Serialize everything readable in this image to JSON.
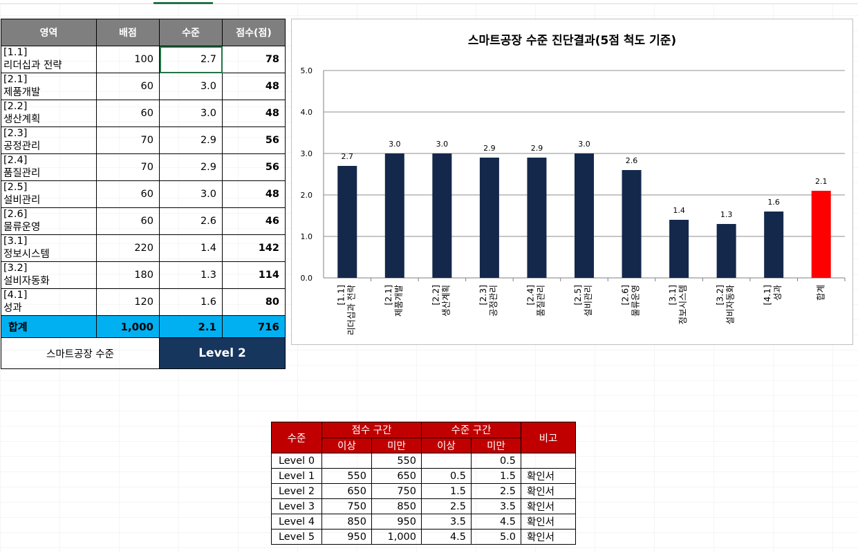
{
  "main_table": {
    "headers": [
      "영역",
      "배점",
      "수준",
      "점수(점)"
    ],
    "rows": [
      {
        "code": "[1.1]",
        "name": "리더십과 전략",
        "weight": "100",
        "level": "2.7",
        "score": "78"
      },
      {
        "code": "[2.1]",
        "name": "제품개발",
        "weight": "60",
        "level": "3.0",
        "score": "48"
      },
      {
        "code": "[2.2]",
        "name": "생산계획",
        "weight": "60",
        "level": "3.0",
        "score": "48"
      },
      {
        "code": "[2.3]",
        "name": "공정관리",
        "weight": "70",
        "level": "2.9",
        "score": "56"
      },
      {
        "code": "[2.4]",
        "name": "품질관리",
        "weight": "70",
        "level": "2.9",
        "score": "56"
      },
      {
        "code": "[2.5]",
        "name": "설비관리",
        "weight": "60",
        "level": "3.0",
        "score": "48"
      },
      {
        "code": "[2.6]",
        "name": "물류운영",
        "weight": "60",
        "level": "2.6",
        "score": "46"
      },
      {
        "code": "[3.1]",
        "name": "정보시스템",
        "weight": "220",
        "level": "1.4",
        "score": "142"
      },
      {
        "code": "[3.2]",
        "name": "설비자동화",
        "weight": "180",
        "level": "1.3",
        "score": "114"
      },
      {
        "code": "[4.1]",
        "name": "성과",
        "weight": "120",
        "level": "1.6",
        "score": "80"
      }
    ],
    "total": {
      "label": "합계",
      "weight": "1,000",
      "level": "2.1",
      "score": "716"
    },
    "level_label": "스마트공장 수준",
    "level_value": "Level 2"
  },
  "chart_data": {
    "type": "bar",
    "title": "스마트공장 수준 진단결과(5점 척도 기준)",
    "categories": [
      [
        "[1.1]",
        "리더십과 전략"
      ],
      [
        "[2.1]",
        "제품개발"
      ],
      [
        "[2.2]",
        "생산계획"
      ],
      [
        "[2.3]",
        "공정관리"
      ],
      [
        "[2.4]",
        "품질관리"
      ],
      [
        "[2.5]",
        "설비관리"
      ],
      [
        "[2.6]",
        "물류운영"
      ],
      [
        "[3.1]",
        "정보시스템"
      ],
      [
        "[3.2]",
        "설비자동화"
      ],
      [
        "[4.1]",
        "성과"
      ],
      [
        "합계"
      ]
    ],
    "values": [
      2.7,
      3.0,
      3.0,
      2.9,
      2.9,
      3.0,
      2.6,
      1.4,
      1.3,
      1.6,
      2.1
    ],
    "data_labels": [
      "2.7",
      "3.0",
      "3.0",
      "2.9",
      "2.9",
      "3.0",
      "2.6",
      "1.4",
      "1.3",
      "1.6",
      "2.1"
    ],
    "yticks": [
      "0.0",
      "1.0",
      "2.0",
      "3.0",
      "4.0",
      "5.0"
    ],
    "ylim": [
      0,
      5
    ],
    "grid": true,
    "colors": {
      "bar": "#14284b",
      "total_bar": "#ff0000"
    }
  },
  "level_table": {
    "header_level": "수준",
    "header_score": "점수 구간",
    "header_range": "수준 구간",
    "header_note": "비고",
    "sub_from": "이상",
    "sub_to": "미만",
    "rows": [
      {
        "level": "Level 0",
        "s_from": "",
        "s_to": "550",
        "l_from": "",
        "l_to": "0.5",
        "note": ""
      },
      {
        "level": "Level 1",
        "s_from": "550",
        "s_to": "650",
        "l_from": "0.5",
        "l_to": "1.5",
        "note": "확인서"
      },
      {
        "level": "Level 2",
        "s_from": "650",
        "s_to": "750",
        "l_from": "1.5",
        "l_to": "2.5",
        "note": "확인서"
      },
      {
        "level": "Level 3",
        "s_from": "750",
        "s_to": "850",
        "l_from": "2.5",
        "l_to": "3.5",
        "note": "확인서"
      },
      {
        "level": "Level 4",
        "s_from": "850",
        "s_to": "950",
        "l_from": "3.5",
        "l_to": "4.5",
        "note": "확인서"
      },
      {
        "level": "Level 5",
        "s_from": "950",
        "s_to": "1,000",
        "l_from": "4.5",
        "l_to": "5.0",
        "note": "확인서"
      }
    ]
  }
}
